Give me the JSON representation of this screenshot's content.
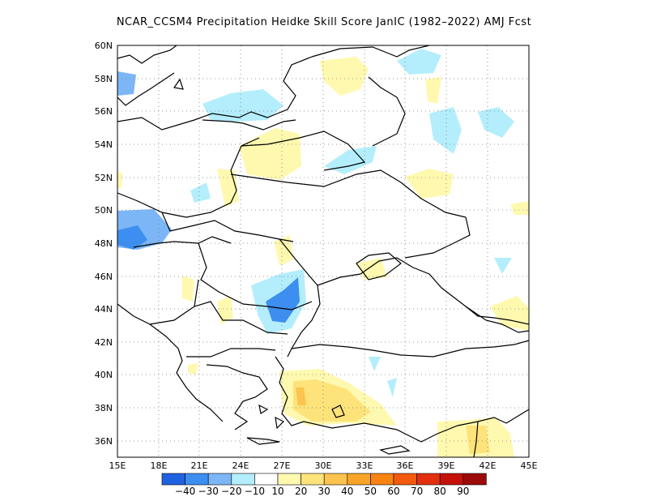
{
  "title": "NCAR_CCSM4  Precipitation Heidke Skill Score JanIC (1982–2022) AMJ Fcst",
  "map": {
    "lon_range": [
      15,
      45
    ],
    "lat_range": [
      35,
      60
    ],
    "lon_ticks": [
      "15E",
      "18E",
      "21E",
      "24E",
      "27E",
      "30E",
      "33E",
      "36E",
      "39E",
      "42E",
      "45E"
    ],
    "lat_ticks": [
      "36N",
      "38N",
      "40N",
      "42N",
      "44N",
      "46N",
      "48N",
      "50N",
      "52N",
      "54N",
      "56N",
      "58N",
      "60N"
    ],
    "grid": "dotted"
  },
  "colorbar": {
    "colors": [
      "#1f62e0",
      "#3c8ef0",
      "#7db6f6",
      "#b4eefc",
      "#ffffff",
      "#fff9b0",
      "#fde37a",
      "#fcc34e",
      "#f7a528",
      "#f88312",
      "#f25a10",
      "#e2300e",
      "#c4120b",
      "#9c0a0a"
    ],
    "labels": [
      "−40",
      "−30",
      "−20",
      "−10",
      "10",
      "20",
      "30",
      "40",
      "50",
      "60",
      "70",
      "80",
      "90"
    ]
  }
}
